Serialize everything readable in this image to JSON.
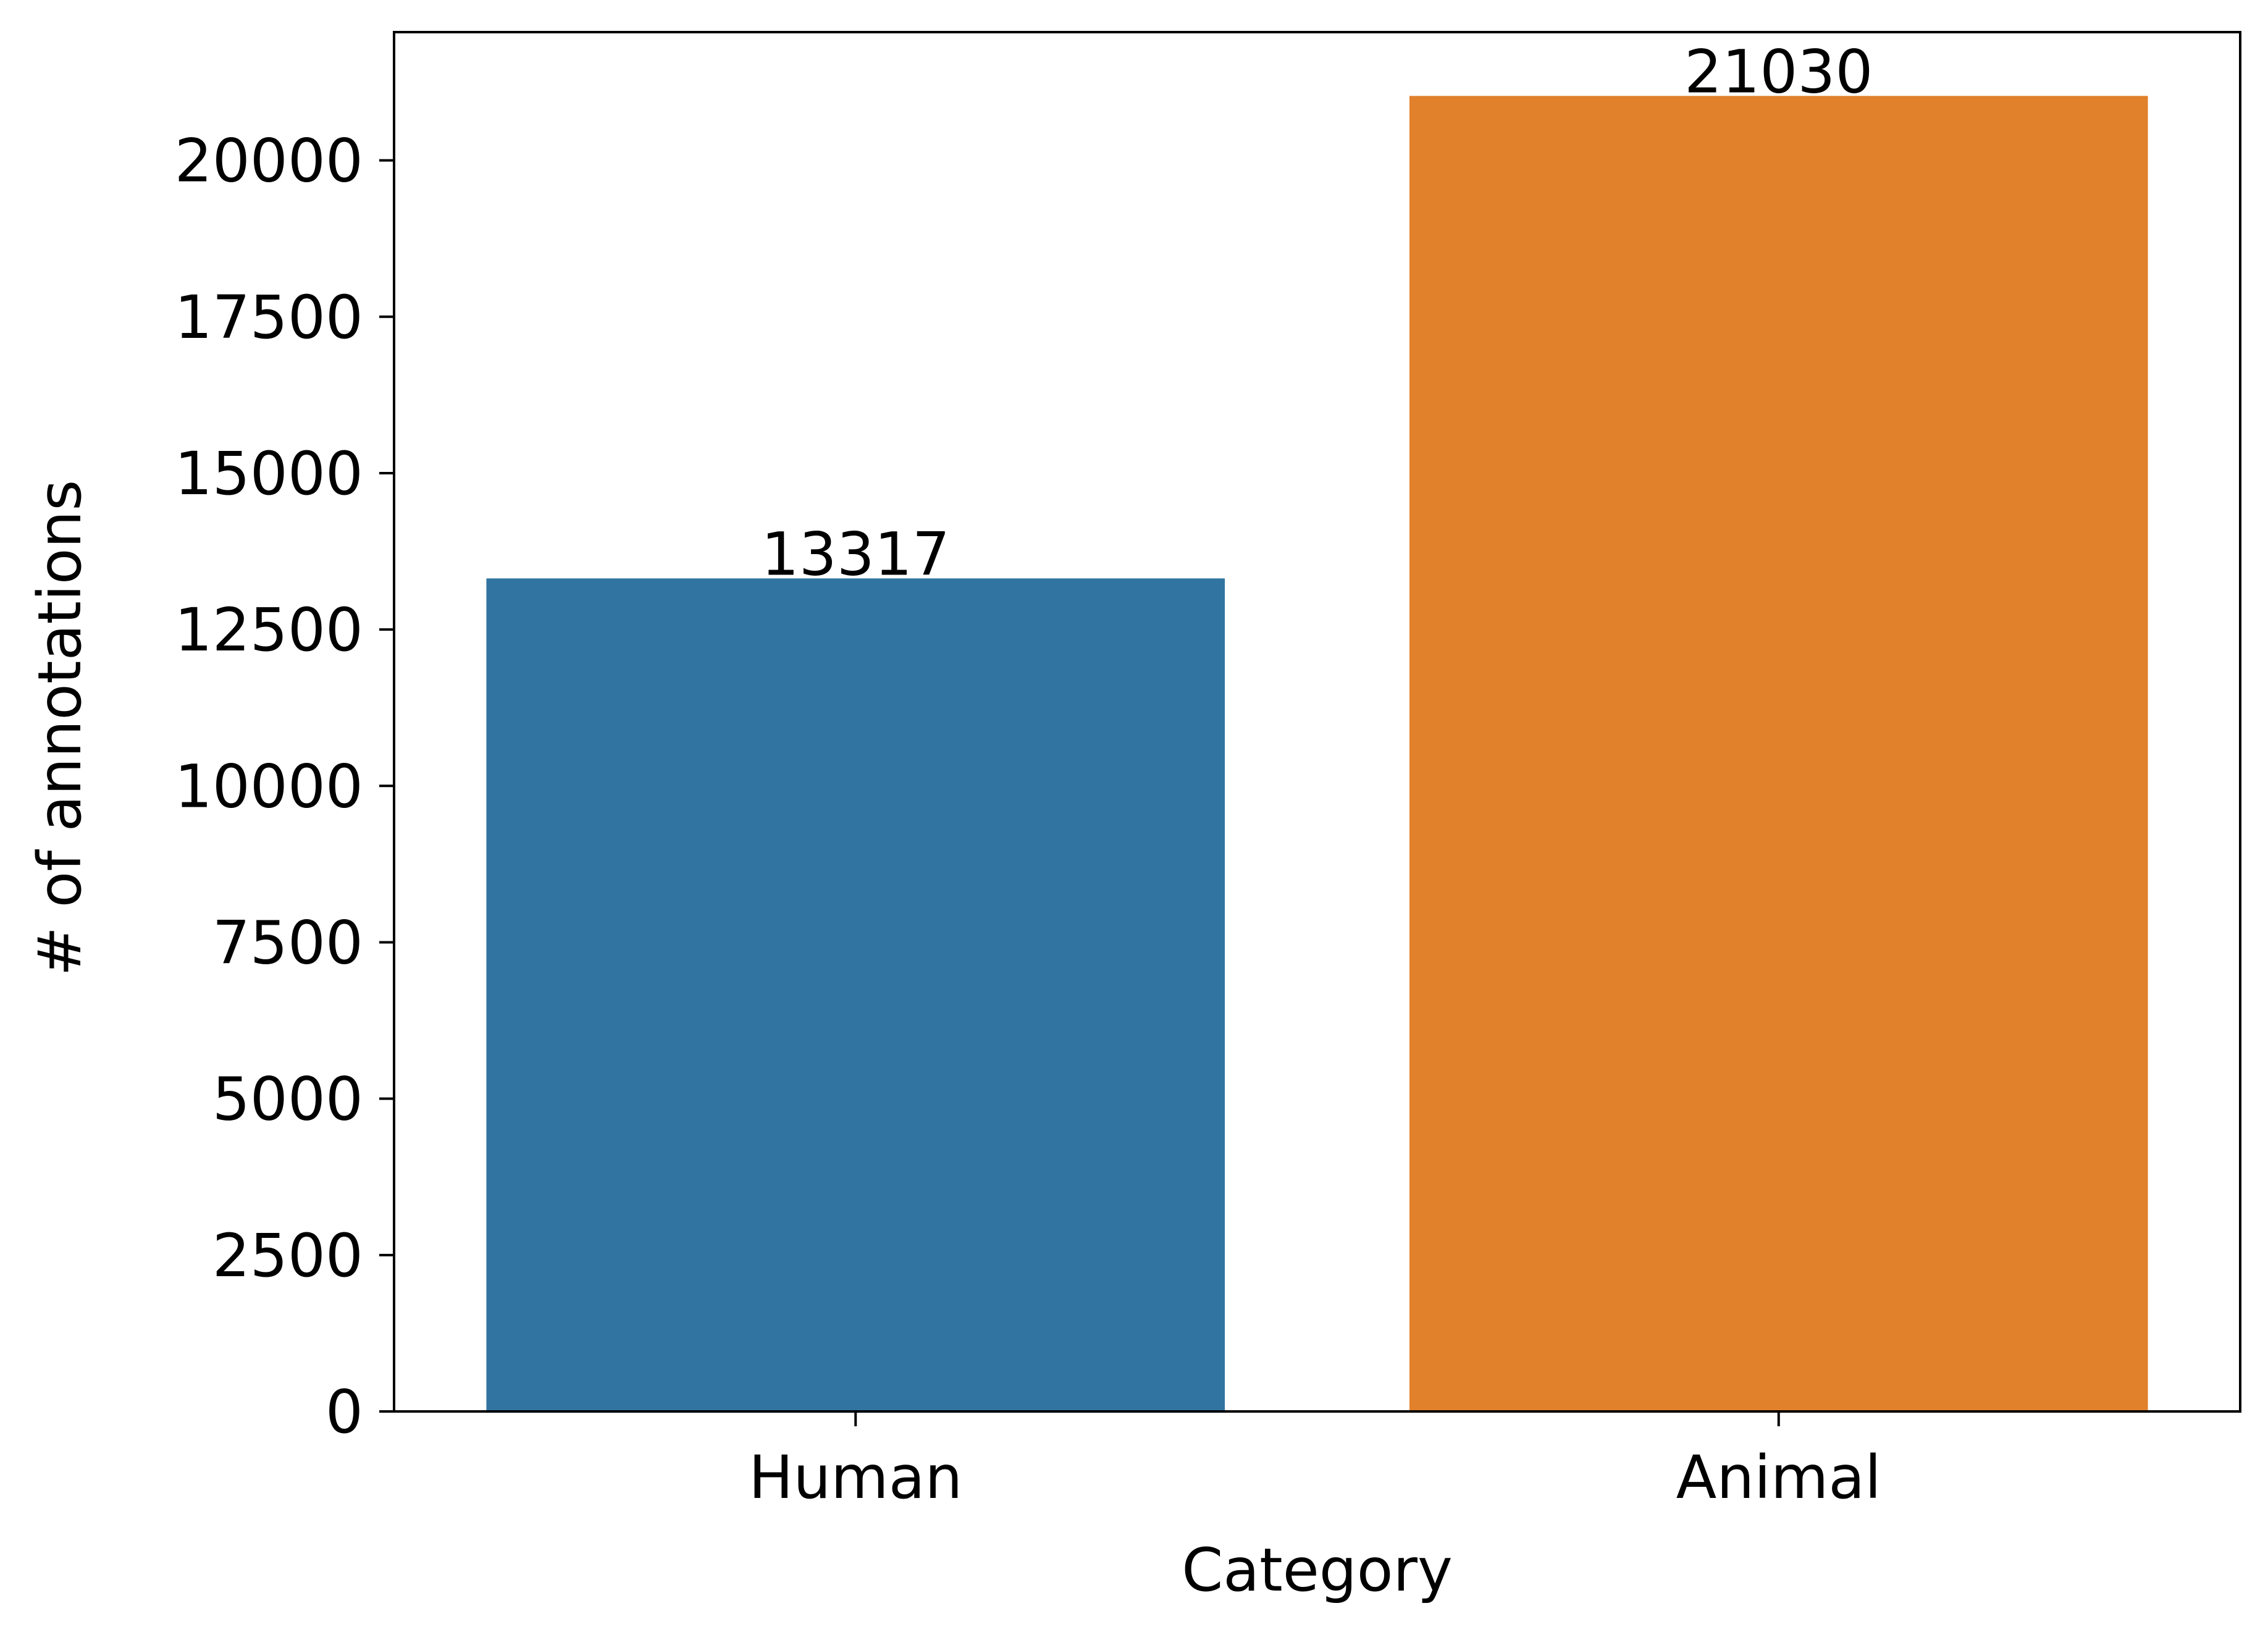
{
  "chart_data": {
    "type": "bar",
    "categories": [
      "Human",
      "Animal"
    ],
    "values": [
      13317,
      21030
    ],
    "data_labels": [
      "13317",
      "21030"
    ],
    "colors": [
      "#3274a1",
      "#e1812c"
    ],
    "xlabel": "Category",
    "ylabel": "# of annotations",
    "ylim": [
      0,
      22050
    ],
    "yticks": [
      0,
      2500,
      5000,
      7500,
      10000,
      12500,
      15000,
      17500,
      20000
    ],
    "ytick_labels": [
      "0",
      "2500",
      "5000",
      "7500",
      "10000",
      "12500",
      "15000",
      "17500",
      "20000"
    ],
    "grid": false,
    "legend": "none"
  }
}
